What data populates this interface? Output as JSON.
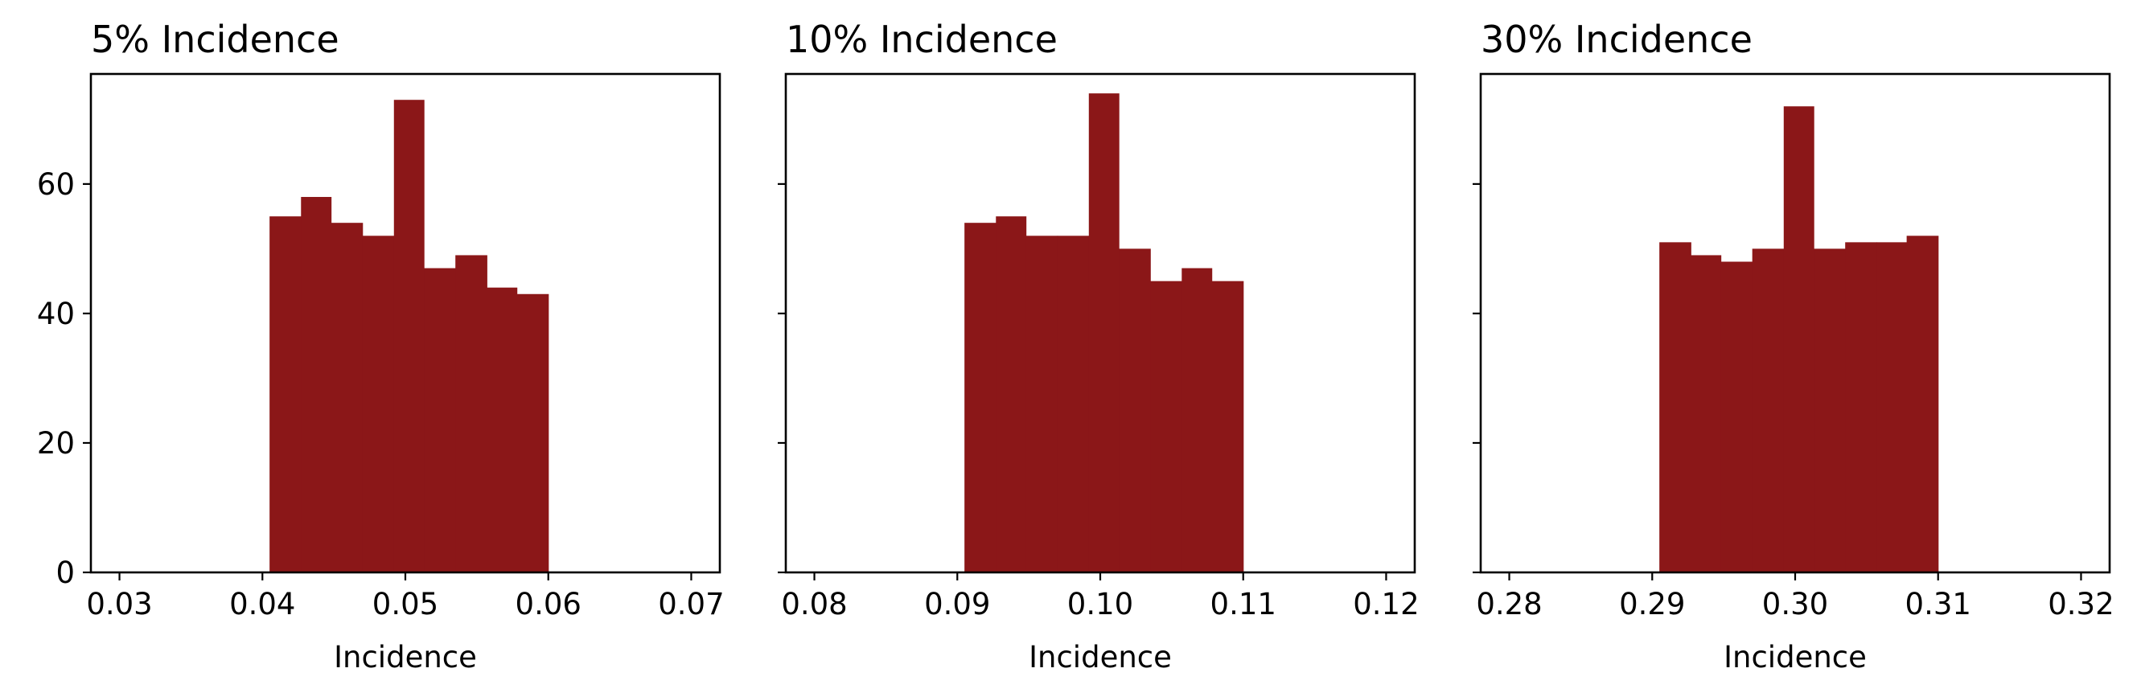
{
  "figure": {
    "bar_color": "#8b1718"
  },
  "chart_data": [
    {
      "type": "bar",
      "title": "5% Incidence",
      "xlabel": "Incidence",
      "ylabel": "",
      "xlim": [
        0.028,
        0.072
      ],
      "ylim": [
        0,
        77
      ],
      "xticks": [
        "0.03",
        "0.04",
        "0.05",
        "0.06",
        "0.07"
      ],
      "yticks": [
        "0",
        "20",
        "40",
        "60"
      ],
      "bin_edges": [
        0.0405,
        0.0427,
        0.0448,
        0.047,
        0.0492,
        0.0513,
        0.0535,
        0.0557,
        0.0578,
        0.06
      ],
      "values": [
        55,
        58,
        54,
        52,
        73,
        47,
        49,
        44,
        43
      ],
      "grid": false,
      "legend": "none"
    },
    {
      "type": "bar",
      "title": "10% Incidence",
      "xlabel": "Incidence",
      "ylabel": "",
      "xlim": [
        0.078,
        0.122
      ],
      "ylim": [
        0,
        77
      ],
      "xticks": [
        "0.08",
        "0.09",
        "0.10",
        "0.11",
        "0.12"
      ],
      "yticks": [
        "0",
        "20",
        "40",
        "60"
      ],
      "bin_edges": [
        0.0905,
        0.0927,
        0.0948,
        0.097,
        0.0992,
        0.1013,
        0.1035,
        0.1057,
        0.1078,
        0.11
      ],
      "values": [
        54,
        55,
        52,
        52,
        74,
        50,
        45,
        47,
        45
      ],
      "grid": false,
      "legend": "none"
    },
    {
      "type": "bar",
      "title": "30% Incidence",
      "xlabel": "Incidence",
      "ylabel": "",
      "xlim": [
        0.278,
        0.322
      ],
      "ylim": [
        0,
        77
      ],
      "xticks": [
        "0.28",
        "0.29",
        "0.30",
        "0.31",
        "0.32"
      ],
      "yticks": [
        "0",
        "20",
        "40",
        "60"
      ],
      "bin_edges": [
        0.2905,
        0.2927,
        0.2948,
        0.297,
        0.2992,
        0.3013,
        0.3035,
        0.3057,
        0.3078,
        0.31
      ],
      "values": [
        51,
        49,
        48,
        50,
        72,
        50,
        51,
        51,
        52
      ],
      "grid": false,
      "legend": "none"
    }
  ]
}
